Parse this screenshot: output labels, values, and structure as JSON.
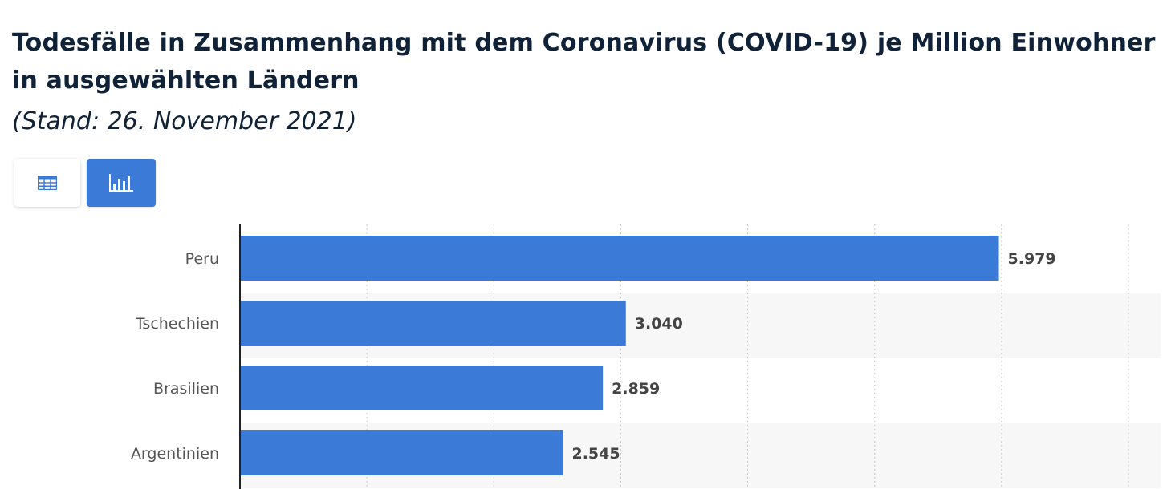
{
  "header": {
    "title": "Todesfälle in Zusammenhang mit dem Coronavirus (COVID-19) je Million Einwohner in ausgewählten Ländern",
    "subtitle": "(Stand: 26. November 2021)"
  },
  "view_toggle": {
    "table_icon": "table-icon",
    "chart_icon": "bar-chart-icon",
    "active": "chart",
    "active_color": "#3b7ad7"
  },
  "chart_data": {
    "type": "bar",
    "orientation": "horizontal",
    "categories": [
      "Peru",
      "Tschechien",
      "Brasilien",
      "Argentinien"
    ],
    "values": [
      5979,
      3040,
      2859,
      2545
    ],
    "value_labels": [
      "5.979",
      "3.040",
      "2.859",
      "2.545"
    ],
    "xlim": [
      0,
      7000
    ],
    "grid": true,
    "bar_color": "#3b7ad7"
  }
}
